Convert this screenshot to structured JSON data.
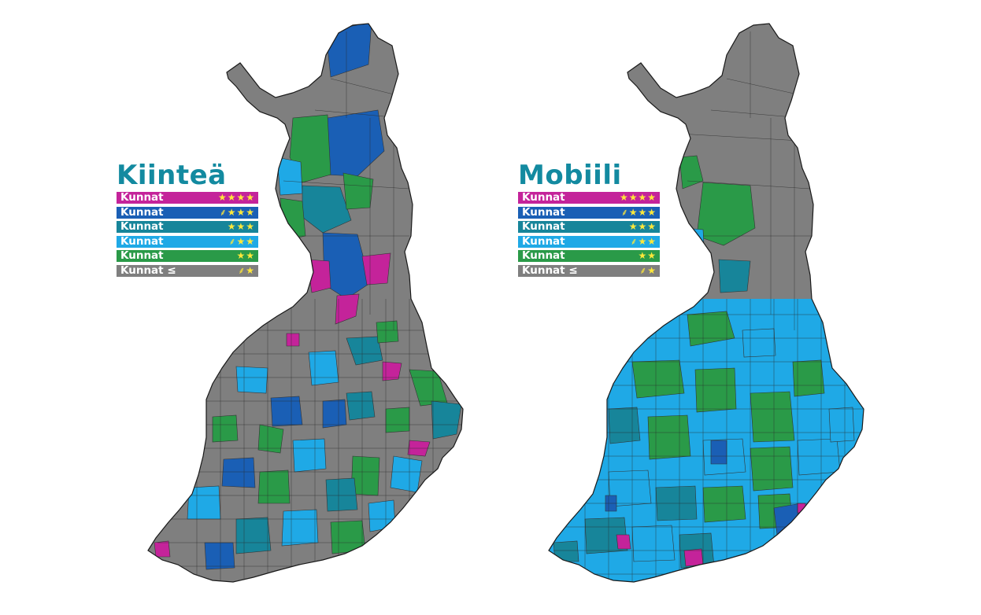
{
  "maps": [
    {
      "id": "kiintea",
      "title": "Kiinteä",
      "legend": [
        {
          "label": "Kunnat",
          "stars": "★★★★",
          "color": "#c4239a"
        },
        {
          "label": "Kunnat",
          "stars": "⸙★★★",
          "color": "#1a5fb5"
        },
        {
          "label": "Kunnat",
          "stars": "★★★",
          "color": "#17859a"
        },
        {
          "label": "Kunnat",
          "stars": "⸙★★",
          "color": "#1fa9e6"
        },
        {
          "label": "Kunnat",
          "stars": "★★",
          "color": "#2a9a48"
        },
        {
          "label": "Kunnat ≤",
          "stars": "⸙★",
          "color": "#7f7f7f"
        }
      ]
    },
    {
      "id": "mobiili",
      "title": "Mobiili",
      "legend": [
        {
          "label": "Kunnat",
          "stars": "★★★★",
          "color": "#c4239a"
        },
        {
          "label": "Kunnat",
          "stars": "⸙★★★",
          "color": "#1a5fb5"
        },
        {
          "label": "Kunnat",
          "stars": "★★★",
          "color": "#17859a"
        },
        {
          "label": "Kunnat",
          "stars": "⸙★★",
          "color": "#1fa9e6"
        },
        {
          "label": "Kunnat",
          "stars": "★★",
          "color": "#2a9a48"
        },
        {
          "label": "Kunnat ≤",
          "stars": "⸙★",
          "color": "#7f7f7f"
        }
      ]
    }
  ]
}
